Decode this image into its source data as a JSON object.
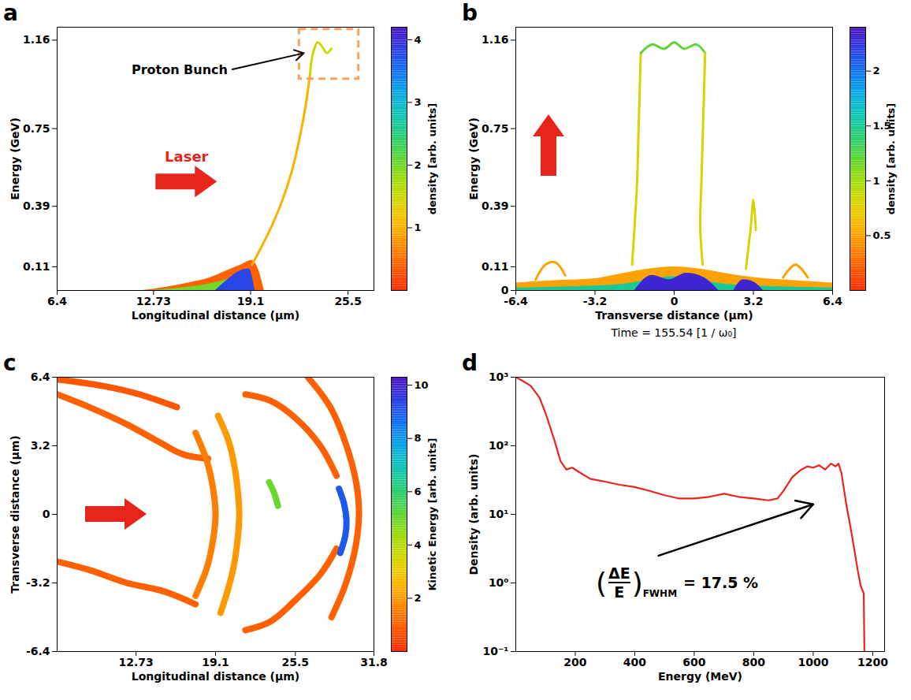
{
  "chart_data": [
    {
      "type": "phase_space",
      "panel": "a",
      "x_label": "Longitudinal distance (μm)",
      "y_label": "Energy (GeV)",
      "xlim": [
        6.4,
        27.2
      ],
      "xticks": [
        6.4,
        12.73,
        19.1,
        25.5
      ],
      "ylim": [
        0,
        1.22
      ],
      "yticks": [
        0.11,
        0.39,
        0.75,
        1.16
      ],
      "colorbar": {
        "label": "density [arb. units]",
        "lim": [
          0,
          4.2
        ],
        "ticks": [
          1,
          2,
          3,
          4
        ]
      },
      "regions": [
        {
          "density": 0.4,
          "x": [
            12.0,
            13.5,
            15,
            16.5,
            17.5,
            18.5,
            19.2,
            19.6,
            20.0
          ],
          "y": [
            0,
            0.015,
            0.035,
            0.06,
            0.09,
            0.12,
            0.14,
            0.1,
            0
          ]
        },
        {
          "density": 2,
          "x": [
            12.5,
            14,
            15.5,
            17,
            18,
            18.8,
            19.4
          ],
          "y": [
            0,
            0.008,
            0.02,
            0.04,
            0.06,
            0.08,
            0
          ]
        },
        {
          "density": 3.8,
          "x": [
            16.8,
            17.6,
            18.4,
            19.0,
            19.4
          ],
          "y": [
            0,
            0.05,
            0.09,
            0.1,
            0
          ]
        }
      ],
      "curves": [
        {
          "density": 1,
          "x": [
            19.2,
            19.8,
            20.5,
            21.2,
            21.8,
            22.3,
            22.7,
            23.0
          ],
          "y": [
            0.12,
            0.2,
            0.3,
            0.42,
            0.55,
            0.7,
            0.85,
            1.0
          ]
        },
        {
          "density": 1.5,
          "x": [
            23.0,
            23.2,
            23.5,
            23.8,
            24.1,
            24.4
          ],
          "y": [
            1.0,
            1.1,
            1.15,
            1.13,
            1.1,
            1.12
          ]
        }
      ],
      "box": {
        "x": [
          22.3,
          26.2
        ],
        "y": [
          0.98,
          1.21
        ],
        "color": "#f4a460"
      },
      "annotations": [
        {
          "text": "Proton Bunch",
          "x": 17.6,
          "y": 1.02,
          "arrow_to": [
            22.6,
            1.1
          ]
        },
        {
          "text": "Laser",
          "x": 14.9,
          "y": 0.62,
          "color": "#e8251b"
        }
      ]
    },
    {
      "type": "phase_space",
      "panel": "b",
      "x_label": "Transverse distance (μm)",
      "y_label": "Energy (GeV)",
      "caption": "Time = 155.54 [1 / ω₀]",
      "xlim": [
        -6.4,
        6.4
      ],
      "xticks": [
        -6.4,
        -3.2,
        0,
        3.2,
        6.4
      ],
      "ylim": [
        0,
        1.22
      ],
      "yticks": [
        0,
        0.11,
        0.39,
        0.75,
        1.16
      ],
      "colorbar": {
        "label": "density [arb. units]",
        "lim": [
          0,
          2.4
        ],
        "ticks": [
          0.5,
          1,
          1.5,
          2
        ]
      },
      "regions": [
        {
          "density": 0.5,
          "x": [
            -6.4,
            -5,
            -3.2,
            -2,
            -1,
            0,
            1,
            2,
            3.2,
            5,
            6.4
          ],
          "y": [
            0.035,
            0.045,
            0.055,
            0.08,
            0.1,
            0.11,
            0.1,
            0.08,
            0.06,
            0.045,
            0.035
          ]
        },
        {
          "density": 1.5,
          "x": [
            -6.4,
            -4,
            -2,
            -1,
            0,
            1,
            2,
            4,
            6.4
          ],
          "y": [
            0.012,
            0.018,
            0.03,
            0.05,
            0.065,
            0.05,
            0.03,
            0.018,
            0.012
          ]
        },
        {
          "density": 2.3,
          "x": [
            -1.6,
            -0.9,
            -0.2,
            0.5,
            1.2,
            1.8
          ],
          "y": [
            0,
            0.07,
            0.05,
            0.08,
            0.06,
            0
          ]
        },
        {
          "density": 2.3,
          "x": [
            2.4,
            2.8,
            3.2,
            3.6
          ],
          "y": [
            0,
            0.05,
            0.04,
            0
          ]
        }
      ],
      "curves": [
        {
          "density": 0.8,
          "x": [
            -1.7,
            -1.6,
            -1.5,
            -1.45,
            -1.4,
            -1.35
          ],
          "y": [
            0.12,
            0.3,
            0.5,
            0.7,
            0.9,
            1.1
          ]
        },
        {
          "density": 1.2,
          "x": [
            -1.35,
            -0.9,
            -0.4,
            0,
            0.4,
            0.9,
            1.25
          ],
          "y": [
            1.1,
            1.14,
            1.12,
            1.15,
            1.12,
            1.14,
            1.1
          ]
        },
        {
          "density": 0.8,
          "x": [
            1.25,
            1.2,
            1.15,
            1.1,
            1.05,
            1.15
          ],
          "y": [
            1.1,
            0.9,
            0.7,
            0.5,
            0.3,
            0.12
          ]
        },
        {
          "density": 0.8,
          "x": [
            2.9,
            3.0,
            3.1,
            3.2,
            3.3
          ],
          "y": [
            0.1,
            0.2,
            0.3,
            0.42,
            0.28
          ]
        },
        {
          "density": 0.5,
          "x": [
            -5.6,
            -5.2,
            -4.8,
            -4.4
          ],
          "y": [
            0.05,
            0.12,
            0.13,
            0.07
          ]
        },
        {
          "density": 0.5,
          "x": [
            4.4,
            4.9,
            5.4
          ],
          "y": [
            0.06,
            0.12,
            0.06
          ]
        }
      ]
    },
    {
      "type": "phase_space",
      "panel": "c",
      "x_label": "Longitudinal distance (μm)",
      "y_label": "Transverse distance (μm)",
      "xlim": [
        6.4,
        31.8
      ],
      "xticks": [
        12.73,
        19.1,
        25.5,
        31.8
      ],
      "ylim": [
        -6.4,
        6.4
      ],
      "yticks": [
        -6.4,
        -3.2,
        0,
        3.2,
        6.4
      ],
      "colorbar": {
        "label": "Kinetic Energy [arb. units]",
        "lim": [
          0,
          10.3
        ],
        "ticks": [
          2,
          4,
          6,
          8,
          10
        ]
      },
      "curves": [
        {
          "density": 1,
          "x": [
            6.4,
            9,
            12,
            14.5,
            16.5,
            18.5
          ],
          "y": [
            5.6,
            5.0,
            4.2,
            3.4,
            2.8,
            2.6
          ]
        },
        {
          "density": 0.8,
          "x": [
            6.4,
            10,
            13,
            16
          ],
          "y": [
            6.3,
            6.0,
            5.6,
            5.0
          ]
        },
        {
          "density": 1,
          "x": [
            6.4,
            9,
            12,
            15,
            17.5
          ],
          "y": [
            -2.2,
            -2.6,
            -3.2,
            -3.6,
            -4.2
          ]
        },
        {
          "density": 1.5,
          "x": [
            17.5,
            18.4,
            18.9,
            19.1,
            18.9,
            18.4,
            17.5
          ],
          "y": [
            3.8,
            2.5,
            1.2,
            0,
            -1.2,
            -2.5,
            -3.8
          ]
        },
        {
          "density": 2,
          "x": [
            19.3,
            20.1,
            20.6,
            20.9,
            21.0,
            20.9,
            20.6,
            20.1,
            19.5
          ],
          "y": [
            4.6,
            3.5,
            2.3,
            1.0,
            0,
            -1.0,
            -2.3,
            -3.5,
            -4.6
          ]
        },
        {
          "density": 1,
          "x": [
            21.5,
            23.5,
            25.5,
            27.5,
            28.8
          ],
          "y": [
            5.6,
            5.3,
            4.5,
            3.2,
            1.8
          ]
        },
        {
          "density": 1,
          "x": [
            21.5,
            23.5,
            25.5,
            27.5,
            28.8
          ],
          "y": [
            -5.4,
            -5.0,
            -4.0,
            -2.8,
            -1.6
          ]
        },
        {
          "density": 1,
          "x": [
            26.5,
            28.3,
            29.6,
            30.4,
            30.6,
            30.3,
            29.5,
            28.4
          ],
          "y": [
            6.4,
            5.0,
            3.2,
            1.4,
            0,
            -1.6,
            -3.3,
            -4.8
          ]
        },
        {
          "density": 5,
          "x": [
            23.4,
            23.8,
            24.1
          ],
          "y": [
            1.5,
            1.0,
            0.4
          ]
        },
        {
          "density": 9,
          "x": [
            29.0,
            29.4,
            29.6,
            29.5,
            29.1
          ],
          "y": [
            1.2,
            0.5,
            -0.3,
            -1.0,
            -1.8
          ]
        }
      ]
    },
    {
      "type": "line",
      "panel": "d",
      "x_label": "Energy (MeV)",
      "y_label": "Density (arb. units)",
      "log": "y",
      "xlim": [
        0,
        1240
      ],
      "xticks": [
        200,
        400,
        600,
        800,
        1000,
        1200
      ],
      "ylim": [
        0.1,
        1000
      ],
      "yticks": [
        {
          "value": 0.1,
          "label": "10⁻¹"
        },
        {
          "value": 1,
          "label": "10⁰"
        },
        {
          "value": 10,
          "label": "10¹"
        },
        {
          "value": 100,
          "label": "10²"
        },
        {
          "value": 1000,
          "label": "10³"
        }
      ],
      "color": "#e8251b",
      "x": [
        0,
        20,
        50,
        80,
        100,
        130,
        150,
        170,
        190,
        210,
        250,
        300,
        350,
        400,
        450,
        500,
        550,
        600,
        650,
        700,
        750,
        800,
        850,
        880,
        900,
        930,
        960,
        980,
        1000,
        1020,
        1040,
        1060,
        1075,
        1085,
        1095,
        1110,
        1130,
        1150,
        1160,
        1170,
        1172
      ],
      "values": [
        1000,
        900,
        750,
        500,
        300,
        120,
        60,
        45,
        48,
        42,
        33,
        30,
        27,
        25,
        22,
        19,
        17,
        17,
        18,
        20,
        18,
        17,
        16,
        17,
        22,
        35,
        45,
        50,
        48,
        52,
        45,
        55,
        50,
        55,
        40,
        15,
        5,
        1.5,
        0.9,
        0.7,
        0.1
      ],
      "annotation": {
        "open": "(",
        "numerator": "ΔE",
        "denominator": "E",
        "close": ")",
        "subscript": "FWHM",
        "text": "= 17.5 %",
        "x": 270,
        "y": 1.0,
        "arrow_from": [
          480,
          2.5
        ],
        "arrow_to": [
          1000,
          14
        ]
      }
    }
  ]
}
